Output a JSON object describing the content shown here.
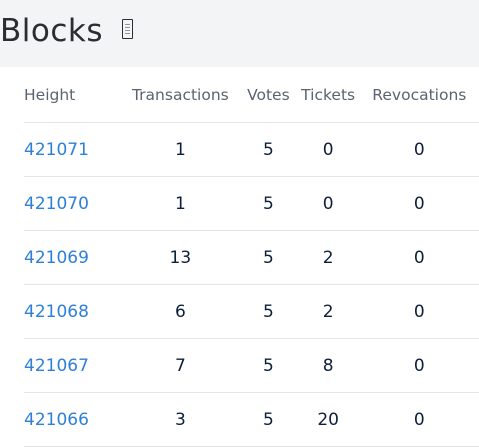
{
  "page": {
    "title": "Blocks",
    "title_icon": "binary-file-icon"
  },
  "table": {
    "headers": {
      "height": "Height",
      "transactions": "Transactions",
      "votes": "Votes",
      "tickets": "Tickets",
      "revocations": "Revocations"
    },
    "rows": [
      {
        "height": "421071",
        "transactions": "1",
        "votes": "5",
        "tickets": "0",
        "revocations": "0"
      },
      {
        "height": "421070",
        "transactions": "1",
        "votes": "5",
        "tickets": "0",
        "revocations": "0"
      },
      {
        "height": "421069",
        "transactions": "13",
        "votes": "5",
        "tickets": "2",
        "revocations": "0"
      },
      {
        "height": "421068",
        "transactions": "6",
        "votes": "5",
        "tickets": "2",
        "revocations": "0"
      },
      {
        "height": "421067",
        "transactions": "7",
        "votes": "5",
        "tickets": "8",
        "revocations": "0"
      },
      {
        "height": "421066",
        "transactions": "3",
        "votes": "5",
        "tickets": "20",
        "revocations": "0"
      }
    ]
  },
  "colors": {
    "link": "#2e7fd8",
    "header_bg": "#f3f4f6",
    "text": "#0d1f3a",
    "header_text": "#5a6470"
  }
}
